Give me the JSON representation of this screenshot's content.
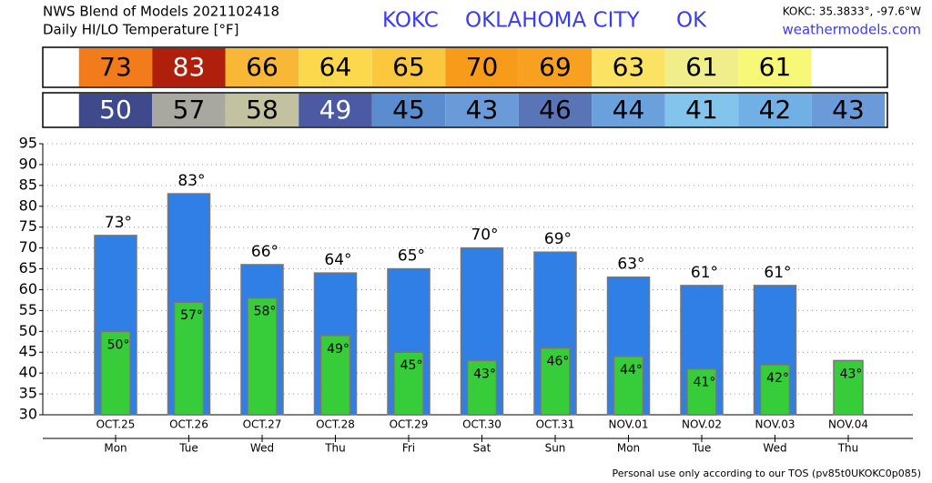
{
  "header": {
    "source": "NWS Blend of Models 2021102418",
    "subtitle": "Daily HI/LO Temperature [°F]",
    "station": "KOKC",
    "city": "OKLAHOMA CITY",
    "state": "OK",
    "coords": "KOKC: 35.3833°, -97.6°W",
    "site": "weathermodels.com"
  },
  "footer": "Personal use only according to our TOS (pv85t0UKOKC0p085)",
  "chart_data": {
    "type": "bar",
    "categories": [
      "OCT.25",
      "OCT.26",
      "OCT.27",
      "OCT.28",
      "OCT.29",
      "OCT.30",
      "OCT.31",
      "NOV.01",
      "NOV.02",
      "NOV.03",
      "NOV.04"
    ],
    "weekdays": [
      "Mon",
      "Tue",
      "Wed",
      "Thu",
      "Fri",
      "Sat",
      "Sun",
      "Mon",
      "Tue",
      "Wed",
      "Thu"
    ],
    "series": [
      {
        "color": "#2f7fe6",
        "values": [
          73,
          83,
          66,
          64,
          65,
          70,
          69,
          63,
          61,
          61,
          null
        ],
        "value_labels": [
          "73°",
          "83°",
          "66°",
          "64°",
          "65°",
          "70°",
          "69°",
          "63°",
          "61°",
          "61°",
          null
        ],
        "cell_colors": [
          "#f27b1c",
          "#b01e0c",
          "#f8b736",
          "#fcd94c",
          "#fbc73e",
          "#f89a1a",
          "#f8a020",
          "#fce262",
          "#efee8a",
          "#f8f878",
          null
        ]
      },
      {
        "color": "#36cc3a",
        "values": [
          50,
          57,
          58,
          49,
          45,
          43,
          46,
          44,
          41,
          42,
          43
        ],
        "value_labels": [
          "50°",
          "57°",
          "58°",
          "49°",
          "45°",
          "43°",
          "46°",
          "44°",
          "41°",
          "42°",
          "43°"
        ],
        "cell_colors": [
          "#3e4a8c",
          "#a9a8a0",
          "#c3c2a0",
          "#4b5aa2",
          "#5b8ccf",
          "#6a9bd8",
          "#5a74b8",
          "#6aa0dc",
          "#82c4ec",
          "#70b0e4",
          "#6a9bd8"
        ]
      }
    ],
    "ylim": [
      30,
      95
    ],
    "yticks": [
      30,
      35,
      40,
      45,
      50,
      55,
      60,
      65,
      70,
      75,
      80,
      85,
      90,
      95
    ],
    "grid": true
  }
}
